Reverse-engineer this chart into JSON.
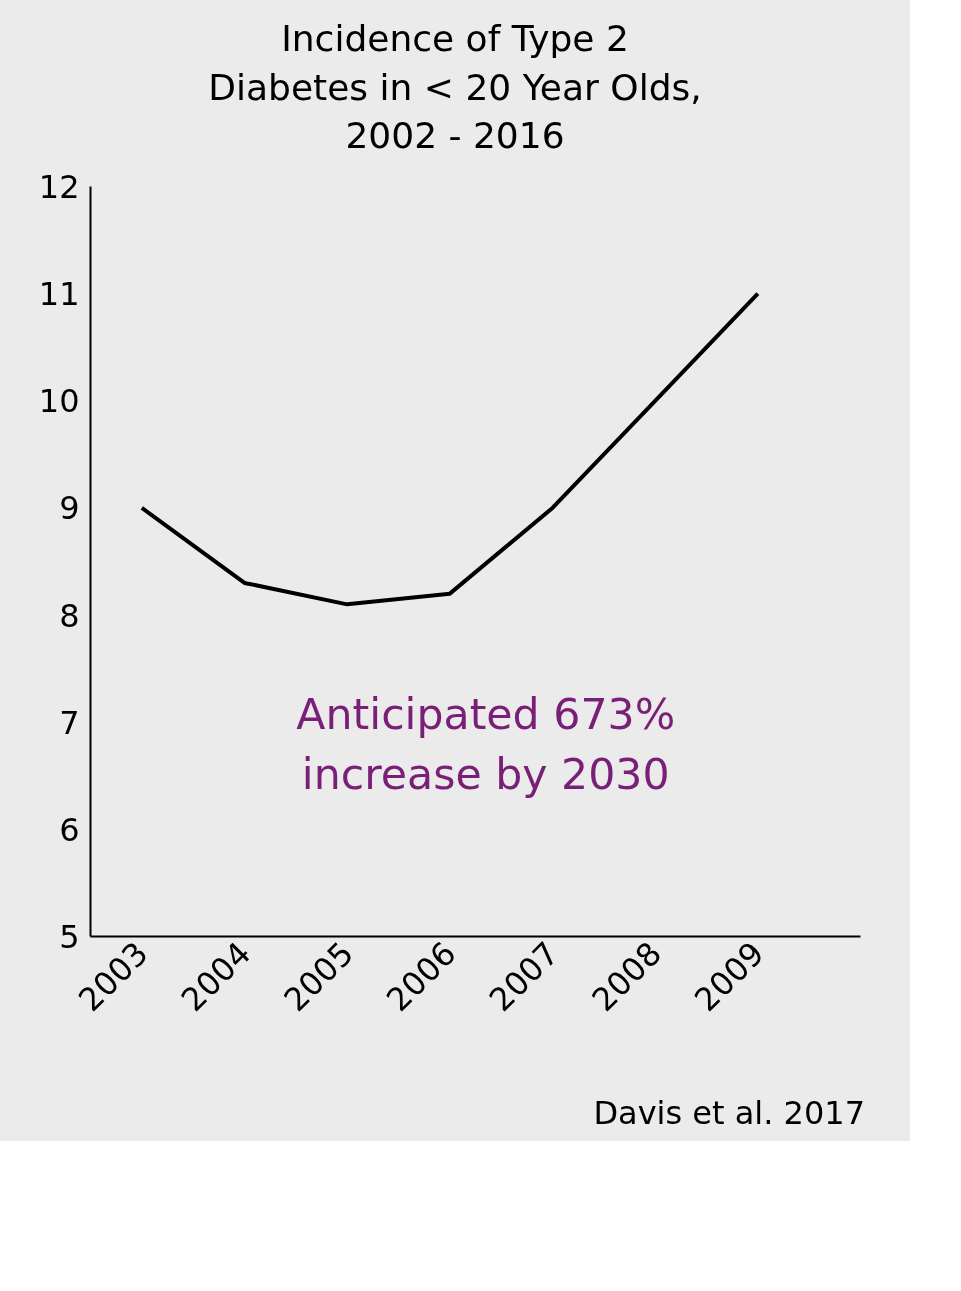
{
  "chart_data": {
    "type": "line",
    "title": "Incidence of Type 2 Diabetes in < 20 Year Olds, 2002 - 2016",
    "categories": [
      "2003",
      "2004",
      "2005",
      "2006",
      "2007",
      "2008",
      "2009"
    ],
    "series": [
      {
        "color": "#000000",
        "values": [
          9.0,
          8.3,
          8.1,
          8.2,
          9.0,
          10.0,
          11.0
        ]
      }
    ],
    "ylim": [
      5,
      12
    ],
    "yticks": [
      5,
      6,
      7,
      8,
      9,
      10,
      11,
      12
    ],
    "grid": false,
    "marker": "none",
    "line_style": "solid",
    "annotations": [
      "Anticipated 673%\nincrease by 2030",
      "Davis et al. 2017"
    ]
  }
}
